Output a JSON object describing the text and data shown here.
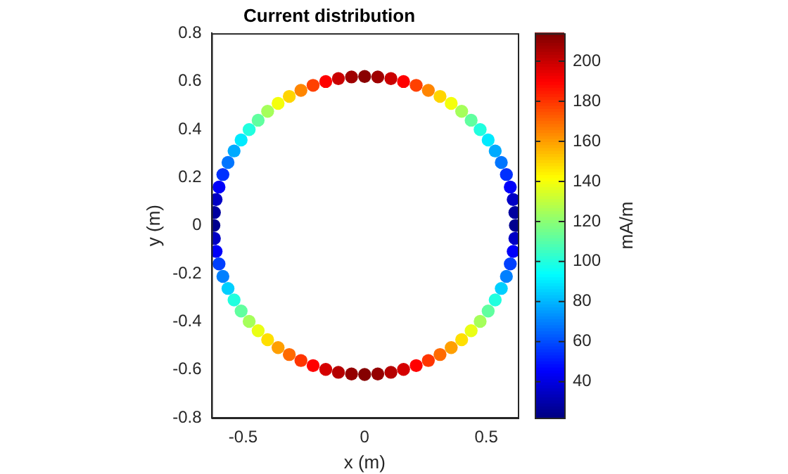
{
  "chart_data": {
    "type": "scatter",
    "title": "Current distribution",
    "xlabel": "x (m)",
    "ylabel": "y (m)",
    "clabel": "mA/m",
    "xlim": [
      -0.63,
      0.63
    ],
    "xticks": [
      -0.5,
      0,
      0.5
    ],
    "ylim": [
      -0.8,
      0.8
    ],
    "yticks": [
      -0.8,
      -0.6,
      -0.4,
      -0.2,
      0,
      0.2,
      0.4,
      0.6,
      0.8
    ],
    "clim": [
      22,
      214
    ],
    "cticks": [
      40,
      60,
      80,
      100,
      120,
      140,
      160,
      180,
      200
    ],
    "grid": false,
    "legend": false,
    "marker": "circle",
    "x": [
      0.62,
      0.618,
      0.611,
      0.599,
      0.583,
      0.562,
      0.537,
      0.508,
      0.475,
      0.438,
      0.399,
      0.356,
      0.31,
      0.262,
      0.212,
      0.16,
      0.108,
      0.054,
      0,
      -0.054,
      -0.108,
      -0.16,
      -0.212,
      -0.262,
      -0.31,
      -0.356,
      -0.399,
      -0.438,
      -0.475,
      -0.508,
      -0.537,
      -0.562,
      -0.583,
      -0.599,
      -0.611,
      -0.618,
      -0.62,
      -0.618,
      -0.611,
      -0.599,
      -0.583,
      -0.562,
      -0.537,
      -0.508,
      -0.475,
      -0.438,
      -0.399,
      -0.356,
      -0.31,
      -0.262,
      -0.212,
      -0.16,
      -0.108,
      -0.054,
      0,
      0.054,
      0.108,
      0.16,
      0.212,
      0.262,
      0.31,
      0.356,
      0.399,
      0.438,
      0.475,
      0.508,
      0.537,
      0.562,
      0.583,
      0.599,
      0.611,
      0.618
    ],
    "values": [
      0,
      0.054,
      0.108,
      0.16,
      0.212,
      0.262,
      0.31,
      0.356,
      0.399,
      0.438,
      0.475,
      0.508,
      0.537,
      0.562,
      0.583,
      0.599,
      0.611,
      0.618,
      0.62,
      0.618,
      0.611,
      0.599,
      0.583,
      0.562,
      0.537,
      0.508,
      0.475,
      0.438,
      0.399,
      0.356,
      0.31,
      0.262,
      0.212,
      0.16,
      0.108,
      0.054,
      0,
      -0.054,
      -0.108,
      -0.16,
      -0.212,
      -0.262,
      -0.31,
      -0.356,
      -0.399,
      -0.438,
      -0.475,
      -0.508,
      -0.537,
      -0.562,
      -0.583,
      -0.599,
      -0.611,
      -0.618,
      -0.62,
      -0.618,
      -0.611,
      -0.599,
      -0.583,
      -0.562,
      -0.537,
      -0.508,
      -0.475,
      -0.438,
      -0.399,
      -0.356,
      -0.31,
      -0.262,
      -0.212,
      -0.16,
      -0.108,
      -0.054
    ],
    "cvalues": [
      25,
      28,
      35,
      45,
      55,
      68,
      78,
      90,
      100,
      112,
      125,
      140,
      150,
      165,
      178,
      190,
      200,
      208,
      212,
      208,
      200,
      190,
      178,
      165,
      150,
      140,
      125,
      112,
      100,
      90,
      78,
      68,
      55,
      45,
      35,
      28,
      25,
      35,
      45,
      58,
      70,
      85,
      100,
      112,
      125,
      138,
      148,
      160,
      170,
      180,
      190,
      198,
      204,
      210,
      213,
      210,
      204,
      198,
      190,
      180,
      170,
      160,
      148,
      138,
      125,
      112,
      100,
      85,
      70,
      58,
      45,
      35
    ]
  }
}
